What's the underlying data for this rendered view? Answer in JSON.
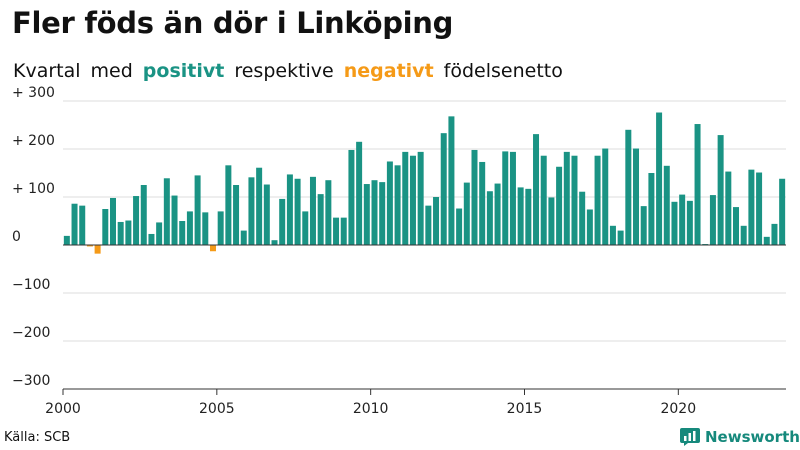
{
  "title": "Fler föds än dör i Linköping",
  "subtitle": {
    "part1": "Kvartal",
    "part2": "med",
    "positive_word": "positivt",
    "part3": "respektive",
    "negative_word": "negativt",
    "part4": "födelsenetto"
  },
  "source": "Källa: SCB",
  "brand": {
    "name": "Newsworthy",
    "icon": "bar-chart-icon"
  },
  "colors": {
    "positive": "#1a9384",
    "negative": "#f59a17",
    "brand": "#16897c"
  },
  "chart_data": {
    "type": "bar",
    "title": "Fler föds än dör i Linköping",
    "xlabel": "",
    "ylabel": "",
    "ylim": [
      -300,
      300
    ],
    "yticks": [
      300,
      200,
      100,
      0,
      -100,
      -200,
      -300
    ],
    "ytick_labels": [
      "+ 300",
      "+ 200",
      "+ 100",
      "0",
      "−100",
      "−200",
      "−300"
    ],
    "xticks": [
      2000,
      2005,
      2010,
      2015,
      2020
    ],
    "xtick_labels": [
      "2000",
      "2005",
      "2010",
      "2015",
      "2020"
    ],
    "grid": true,
    "start_year": 2000,
    "start_quarter": 1,
    "values": [
      19,
      86,
      82,
      -3,
      -18,
      75,
      98,
      48,
      51,
      102,
      125,
      23,
      47,
      139,
      103,
      50,
      70,
      145,
      68,
      -13,
      70,
      166,
      125,
      30,
      141,
      161,
      126,
      10,
      96,
      147,
      138,
      70,
      142,
      106,
      135,
      57,
      57,
      198,
      215,
      127,
      135,
      131,
      174,
      166,
      194,
      186,
      194,
      82,
      100,
      233,
      268,
      76,
      130,
      198,
      173,
      112,
      128,
      195,
      194,
      120,
      117,
      231,
      186,
      99,
      163,
      194,
      186,
      111,
      74,
      186,
      201,
      40,
      30,
      240,
      201,
      81,
      150,
      276,
      165,
      90,
      105,
      92,
      252,
      2,
      104,
      229,
      153,
      79,
      40,
      157,
      151,
      17,
      44,
      138
    ]
  }
}
